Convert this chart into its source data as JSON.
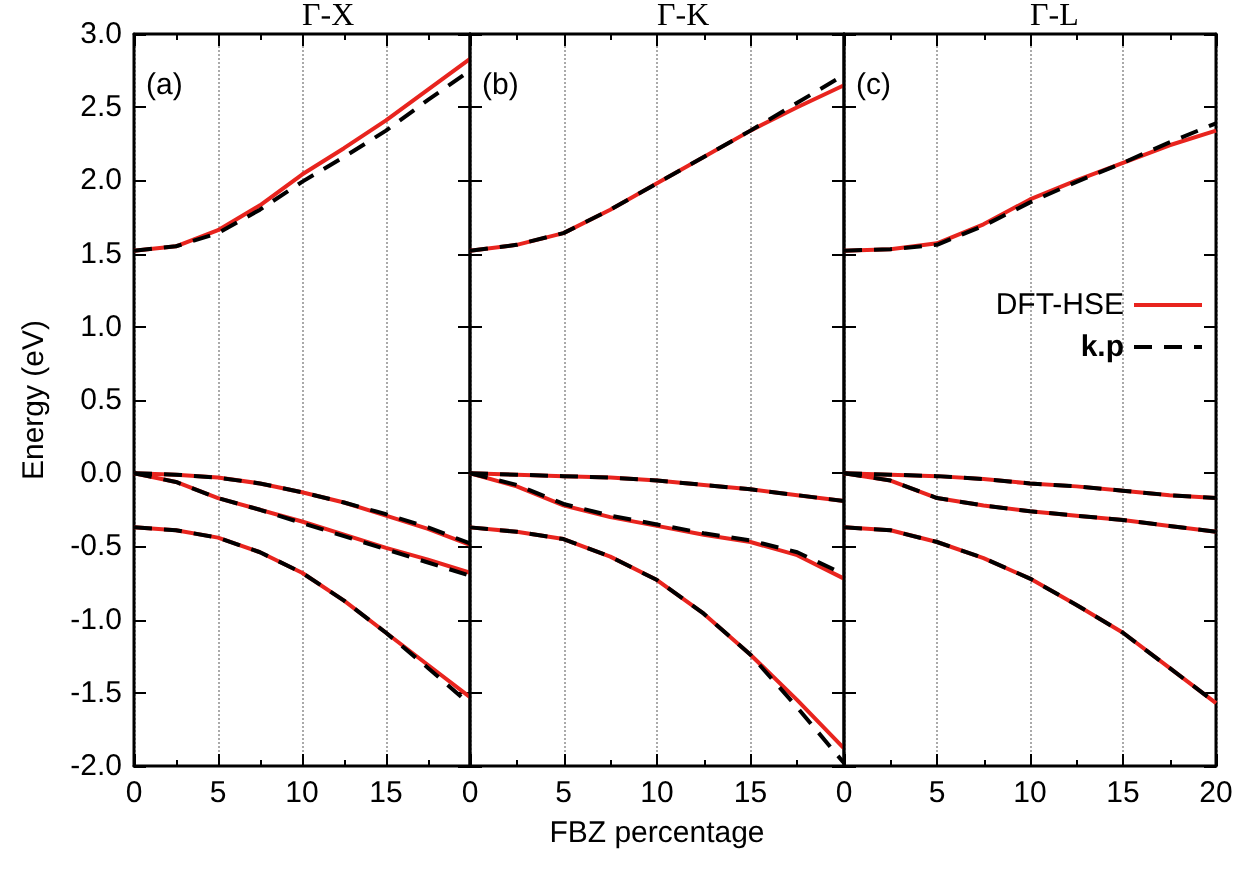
{
  "chart_data": [
    {
      "type": "line",
      "title": "Γ-X",
      "ylabel": "Energy (eV)",
      "annotations": [
        "(a)"
      ],
      "x": [
        0,
        2.5,
        5,
        7.5,
        10,
        12.5,
        15,
        17.5,
        20
      ],
      "xlim": [
        0,
        20
      ],
      "xticks": [
        0,
        5,
        10,
        15,
        {
          "value": 20,
          "label": null
        }
      ],
      "ylim": [
        -2,
        3
      ],
      "yticks": [
        {
          "value": -2,
          "label": "-2.0"
        },
        {
          "value": -1.5,
          "label": "-1.5"
        },
        {
          "value": -1,
          "label": "-1.0"
        },
        {
          "value": -0.5,
          "label": "-0.5"
        },
        {
          "value": 0,
          "label": "0.0"
        },
        {
          "value": 0.5,
          "label": "0.5"
        },
        {
          "value": 1,
          "label": "1.0"
        },
        {
          "value": 1.5,
          "label": "1.5"
        },
        {
          "value": 2,
          "label": "2.0"
        },
        {
          "value": 2.5,
          "label": "2.5"
        },
        {
          "value": 3,
          "label": "3.0"
        }
      ],
      "grid": "x",
      "marker": "none",
      "series": [
        {
          "color": "#e8241e",
          "line_style": "solid",
          "values": [
            1.52,
            1.55,
            1.66,
            1.83,
            2.04,
            2.22,
            2.41,
            2.62,
            2.83
          ]
        },
        {
          "color": "#000000",
          "line_style": "dashed",
          "values": [
            1.52,
            1.55,
            1.64,
            1.8,
            1.99,
            2.16,
            2.34,
            2.55,
            2.75
          ]
        },
        {
          "color": "#e8241e",
          "line_style": "solid",
          "values": [
            0,
            -0.01,
            -0.03,
            -0.07,
            -0.13,
            -0.2,
            -0.29,
            -0.38,
            -0.49
          ]
        },
        {
          "color": "#000000",
          "line_style": "dashed",
          "values": [
            0,
            -0.01,
            -0.03,
            -0.07,
            -0.13,
            -0.2,
            -0.28,
            -0.37,
            -0.48
          ]
        },
        {
          "color": "#e8241e",
          "line_style": "solid",
          "values": [
            0,
            -0.06,
            -0.17,
            -0.25,
            -0.33,
            -0.42,
            -0.51,
            -0.59,
            -0.68
          ]
        },
        {
          "color": "#000000",
          "line_style": "dashed",
          "values": [
            0,
            -0.06,
            -0.17,
            -0.25,
            -0.34,
            -0.43,
            -0.52,
            -0.61,
            -0.7
          ]
        },
        {
          "color": "#e8241e",
          "line_style": "solid",
          "values": [
            -0.37,
            -0.39,
            -0.44,
            -0.54,
            -0.68,
            -0.87,
            -1.09,
            -1.31,
            -1.53
          ]
        },
        {
          "color": "#000000",
          "line_style": "dashed",
          "values": [
            -0.37,
            -0.39,
            -0.44,
            -0.54,
            -0.68,
            -0.87,
            -1.09,
            -1.33,
            -1.58
          ]
        }
      ]
    },
    {
      "type": "line",
      "title": "Γ-K",
      "xlabel": "FBZ percentage",
      "annotations": [
        "(b)"
      ],
      "tick_labels": "x",
      "x": [
        0,
        2.5,
        5,
        7.5,
        10,
        12.5,
        15,
        17.5,
        20
      ],
      "xlim": [
        0,
        20
      ],
      "xticks": [
        0,
        5,
        10,
        15,
        {
          "value": 20,
          "label": null
        }
      ],
      "ylim": [
        -2,
        3
      ],
      "yticks": [
        {
          "value": -2,
          "label": null
        },
        {
          "value": -1.5,
          "label": null
        },
        {
          "value": -1,
          "label": null
        },
        {
          "value": -0.5,
          "label": null
        },
        {
          "value": 0,
          "label": null
        },
        {
          "value": 0.5,
          "label": null
        },
        {
          "value": 1,
          "label": null
        },
        {
          "value": 1.5,
          "label": null
        },
        {
          "value": 2,
          "label": null
        },
        {
          "value": 2.5,
          "label": null
        },
        {
          "value": 3,
          "label": null
        }
      ],
      "grid": "x",
      "marker": "none",
      "series": [
        {
          "color": "#e8241e",
          "line_style": "solid",
          "values": [
            1.52,
            1.56,
            1.64,
            1.8,
            1.98,
            2.16,
            2.34,
            2.5,
            2.65
          ]
        },
        {
          "color": "#000000",
          "line_style": "dashed",
          "values": [
            1.52,
            1.56,
            1.64,
            1.8,
            1.98,
            2.16,
            2.34,
            2.53,
            2.72
          ]
        },
        {
          "color": "#e8241e",
          "line_style": "solid",
          "values": [
            0,
            -0.01,
            -0.02,
            -0.03,
            -0.05,
            -0.08,
            -0.11,
            -0.15,
            -0.19
          ]
        },
        {
          "color": "#000000",
          "line_style": "dashed",
          "values": [
            0,
            -0.01,
            -0.02,
            -0.03,
            -0.05,
            -0.08,
            -0.11,
            -0.15,
            -0.19
          ]
        },
        {
          "color": "#e8241e",
          "line_style": "solid",
          "values": [
            0,
            -0.09,
            -0.22,
            -0.3,
            -0.36,
            -0.42,
            -0.47,
            -0.56,
            -0.72
          ]
        },
        {
          "color": "#000000",
          "line_style": "dashed",
          "values": [
            0,
            -0.08,
            -0.21,
            -0.29,
            -0.35,
            -0.41,
            -0.46,
            -0.54,
            -0.69
          ]
        },
        {
          "color": "#e8241e",
          "line_style": "solid",
          "values": [
            -0.37,
            -0.4,
            -0.45,
            -0.57,
            -0.73,
            -0.96,
            -1.24,
            -1.55,
            -1.88
          ]
        },
        {
          "color": "#000000",
          "line_style": "dashed",
          "values": [
            -0.37,
            -0.4,
            -0.45,
            -0.57,
            -0.73,
            -0.96,
            -1.24,
            -1.6,
            -1.98
          ]
        }
      ]
    },
    {
      "type": "line",
      "title": "Γ-L",
      "annotations": [
        "(c)"
      ],
      "tick_labels": "x",
      "legend": "right",
      "x": [
        0,
        2.5,
        5,
        7.5,
        10,
        12.5,
        15,
        17.5,
        20
      ],
      "xlim": [
        0,
        20
      ],
      "xticks": [
        0,
        5,
        10,
        15,
        20
      ],
      "ylim": [
        -2,
        3
      ],
      "yticks": [
        {
          "value": -2,
          "label": null
        },
        {
          "value": -1.5,
          "label": null
        },
        {
          "value": -1,
          "label": null
        },
        {
          "value": -0.5,
          "label": null
        },
        {
          "value": 0,
          "label": null
        },
        {
          "value": 0.5,
          "label": null
        },
        {
          "value": 1,
          "label": null
        },
        {
          "value": 1.5,
          "label": null
        },
        {
          "value": 2,
          "label": null
        },
        {
          "value": 2.5,
          "label": null
        },
        {
          "value": 3,
          "label": null
        }
      ],
      "grid": "x",
      "marker": "none",
      "series": [
        {
          "name": "DFT-HSE",
          "color": "#e8241e",
          "line_style": "solid",
          "values": [
            1.52,
            1.53,
            1.57,
            1.7,
            1.87,
            2.0,
            2.12,
            2.24,
            2.34
          ]
        },
        {
          "name": "k.p",
          "color": "#000000",
          "line_style": "dashed",
          "values": [
            1.52,
            1.53,
            1.56,
            1.69,
            1.85,
            1.99,
            2.12,
            2.26,
            2.39
          ]
        },
        {
          "color": "#e8241e",
          "line_style": "solid",
          "values": [
            0,
            -0.01,
            -0.02,
            -0.04,
            -0.07,
            -0.09,
            -0.12,
            -0.15,
            -0.17
          ]
        },
        {
          "color": "#000000",
          "line_style": "dashed",
          "values": [
            0,
            -0.01,
            -0.02,
            -0.04,
            -0.07,
            -0.09,
            -0.12,
            -0.15,
            -0.17
          ]
        },
        {
          "color": "#e8241e",
          "line_style": "solid",
          "values": [
            0,
            -0.05,
            -0.17,
            -0.22,
            -0.26,
            -0.29,
            -0.32,
            -0.36,
            -0.4
          ]
        },
        {
          "color": "#000000",
          "line_style": "dashed",
          "values": [
            0,
            -0.05,
            -0.17,
            -0.22,
            -0.26,
            -0.29,
            -0.32,
            -0.36,
            -0.4
          ]
        },
        {
          "color": "#e8241e",
          "line_style": "solid",
          "values": [
            -0.37,
            -0.39,
            -0.47,
            -0.58,
            -0.72,
            -0.9,
            -1.09,
            -1.33,
            -1.57
          ]
        },
        {
          "color": "#000000",
          "line_style": "dashed",
          "values": [
            -0.37,
            -0.39,
            -0.47,
            -0.58,
            -0.72,
            -0.9,
            -1.09,
            -1.33,
            -1.57
          ]
        }
      ]
    }
  ]
}
